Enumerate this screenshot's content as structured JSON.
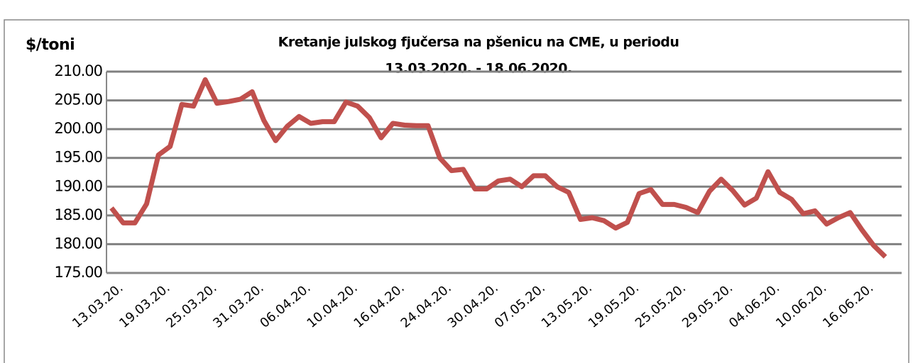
{
  "chart_data": {
    "type": "line",
    "title_lines": [
      "Kretanje julskog fjučersa na  pšenicu na CME, u periodu",
      "13.03.2020. - 18.06.2020."
    ],
    "y_label": "$/toni",
    "categories": [
      "13.03.20.",
      null,
      null,
      null,
      "19.03.20.",
      null,
      null,
      null,
      "25.03.20.",
      null,
      null,
      null,
      "31.03.20.",
      null,
      null,
      null,
      "06.04.20.",
      null,
      null,
      null,
      "10.04.20.",
      null,
      null,
      null,
      "16.04.20.",
      null,
      null,
      null,
      "24.04.20.",
      null,
      null,
      null,
      "30.04.20.",
      null,
      null,
      null,
      "07.05.20.",
      null,
      null,
      null,
      "13.05.20.",
      null,
      null,
      null,
      "19.05.20.",
      null,
      null,
      null,
      "25.05.20.",
      null,
      null,
      null,
      "29.05.20.",
      null,
      null,
      null,
      "04.06.20.",
      null,
      null,
      null,
      "10.06.20.",
      null,
      null,
      null,
      "16.06.20.",
      null,
      null
    ],
    "series": [
      {
        "name": "$/toni",
        "color": "#c0504d",
        "values": [
          186.3,
          183.7,
          183.7,
          187,
          195.5,
          197,
          204.3,
          204,
          208.6,
          204.5,
          204.8,
          205.2,
          206.5,
          201.5,
          198,
          200.5,
          202.2,
          201,
          201.3,
          201.3,
          204.7,
          204,
          202,
          198.5,
          201,
          200.7,
          200.6,
          200.6,
          195,
          192.8,
          193,
          189.6,
          189.6,
          191,
          191.3,
          190,
          191.9,
          191.9,
          190,
          189,
          184.3,
          184.6,
          184.1,
          182.8,
          183.8,
          188.8,
          189.5,
          186.9,
          186.9,
          186.4,
          185.5,
          189.2,
          191.3,
          189.3,
          186.8,
          188,
          192.6,
          189,
          187.8,
          185.3,
          185.8,
          183.5,
          184.6,
          185.5,
          182.5,
          179.8,
          177.8
        ]
      }
    ],
    "ylim": [
      175,
      210
    ],
    "yticks": [
      {
        "value": 175,
        "label": "175.00"
      },
      {
        "value": 180,
        "label": "180.00"
      },
      {
        "value": 185,
        "label": "185.00"
      },
      {
        "value": 190,
        "label": "190.00"
      },
      {
        "value": 195,
        "label": "195.00"
      },
      {
        "value": 200,
        "label": "200.00"
      },
      {
        "value": 205,
        "label": "205.00"
      },
      {
        "value": 210,
        "label": "210.00"
      }
    ],
    "grid": true
  }
}
